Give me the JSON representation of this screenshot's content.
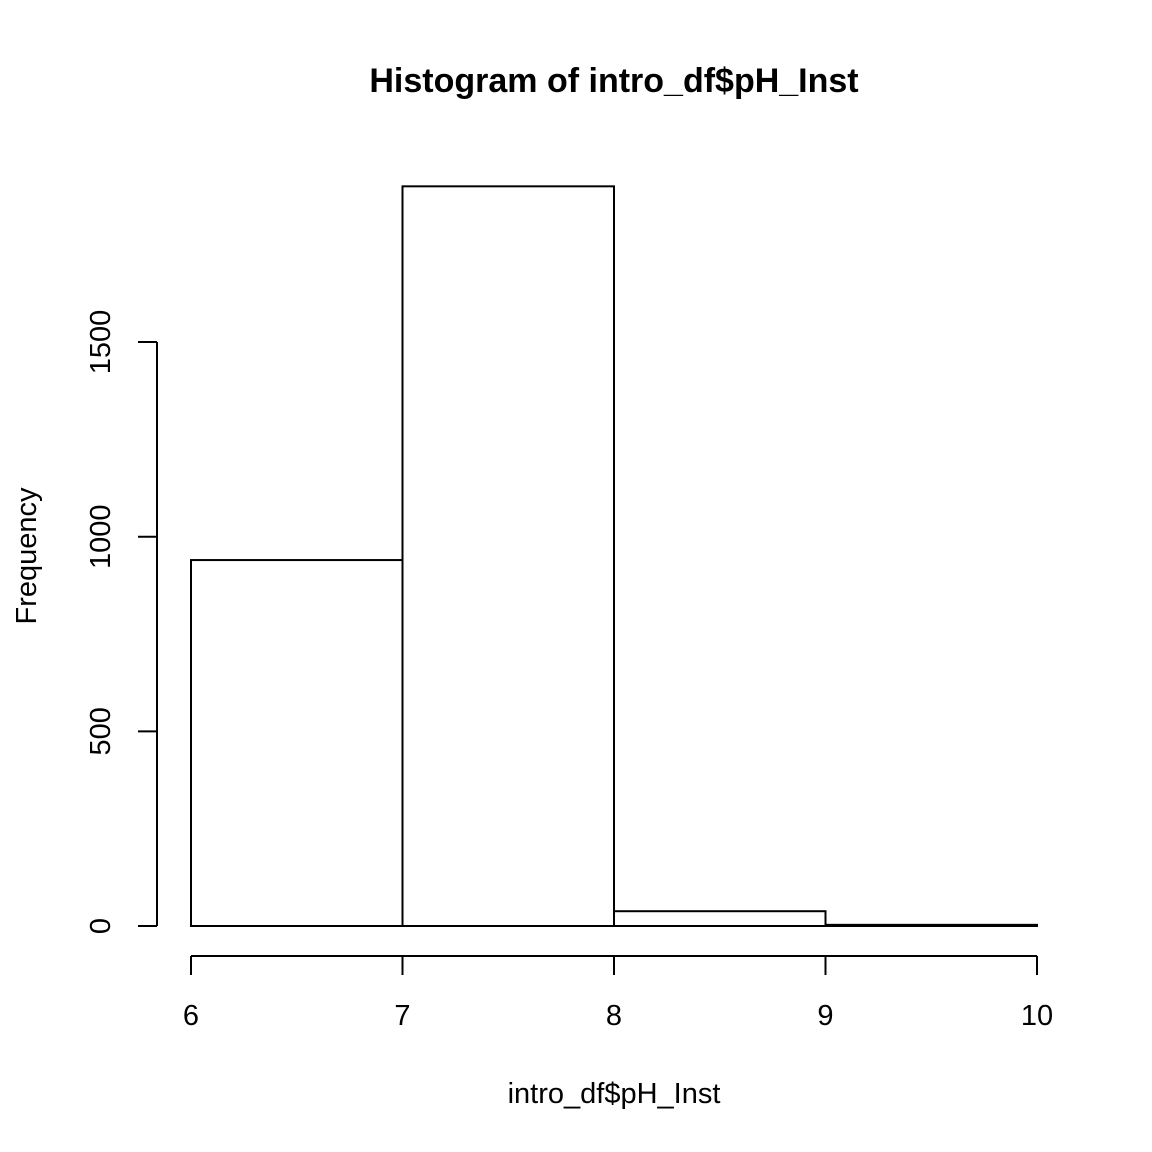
{
  "chart_data": {
    "type": "bar",
    "title": "Histogram of intro_df$pH_Inst",
    "xlabel": "intro_df$pH_Inst",
    "ylabel": "Frequency",
    "bins": [
      {
        "from": 6,
        "to": 7,
        "count": 940
      },
      {
        "from": 7,
        "to": 8,
        "count": 1900
      },
      {
        "from": 8,
        "to": 9,
        "count": 38
      },
      {
        "from": 9,
        "to": 10,
        "count": 3
      }
    ],
    "xlim": [
      6,
      10
    ],
    "ylim": [
      0,
      1900
    ],
    "x_ticks": [
      "6",
      "7",
      "8",
      "9",
      "10"
    ],
    "y_ticks": [
      "0",
      "500",
      "1000",
      "1500"
    ],
    "grid": false,
    "legend": "none",
    "colors": {
      "bar_fill": "#ffffff",
      "bar_stroke": "#000000"
    }
  }
}
